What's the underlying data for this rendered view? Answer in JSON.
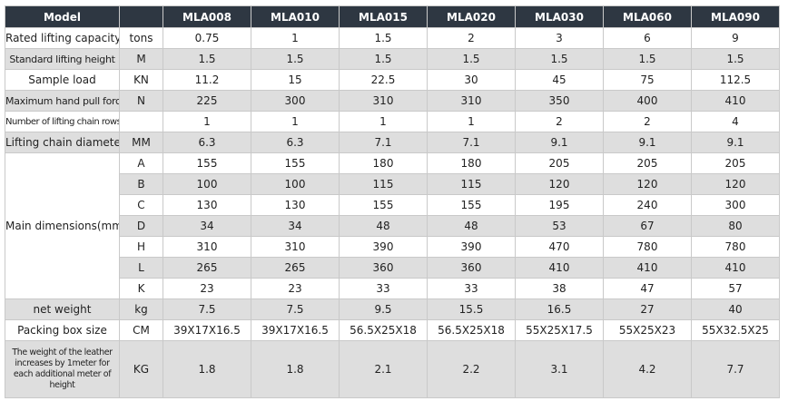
{
  "table": {
    "header": {
      "label": "Model",
      "models": [
        "MLA008",
        "MLA010",
        "MLA015",
        "MLA020",
        "MLA030",
        "MLA060",
        "MLA090"
      ]
    },
    "rows": [
      {
        "label": "Rated lifting capacity",
        "unit": "tons",
        "values": [
          "0.75",
          "1",
          "1.5",
          "2",
          "3",
          "6",
          "9"
        ]
      },
      {
        "label": "Standard lifting height",
        "unit": "M",
        "values": [
          "1.5",
          "1.5",
          "1.5",
          "1.5",
          "1.5",
          "1.5",
          "1.5"
        ]
      },
      {
        "label": "Sample load",
        "unit": "KN",
        "values": [
          "11.2",
          "15",
          "22.5",
          "30",
          "45",
          "75",
          "112.5"
        ]
      },
      {
        "label": "Maximum hand pull force",
        "unit": "N",
        "values": [
          "225",
          "300",
          "310",
          "310",
          "350",
          "400",
          "410"
        ]
      },
      {
        "label": "Number of lifting chain rows",
        "values": [
          "1",
          "1",
          "1",
          "1",
          "2",
          "2",
          "4"
        ]
      },
      {
        "label": "Lifting chain diameter",
        "unit": "MM",
        "values": [
          "6.3",
          "6.3",
          "7.1",
          "7.1",
          "9.1",
          "9.1",
          "9.1"
        ]
      }
    ],
    "dimensions": {
      "label": "Main dimensions(mm)",
      "rows": [
        {
          "unit": "A",
          "values": [
            "155",
            "155",
            "180",
            "180",
            "205",
            "205",
            "205"
          ]
        },
        {
          "unit": "B",
          "values": [
            "100",
            "100",
            "115",
            "115",
            "120",
            "120",
            "120"
          ]
        },
        {
          "unit": "C",
          "values": [
            "130",
            "130",
            "155",
            "155",
            "195",
            "240",
            "300"
          ]
        },
        {
          "unit": "D",
          "values": [
            "34",
            "34",
            "48",
            "48",
            "53",
            "67",
            "80"
          ]
        },
        {
          "unit": "H",
          "values": [
            "310",
            "310",
            "390",
            "390",
            "470",
            "780",
            "780"
          ]
        },
        {
          "unit": "L",
          "values": [
            "265",
            "265",
            "360",
            "360",
            "410",
            "410",
            "410"
          ]
        },
        {
          "unit": "K",
          "values": [
            "23",
            "23",
            "33",
            "33",
            "38",
            "47",
            "57"
          ]
        }
      ]
    },
    "rows_after": [
      {
        "label": "net weight",
        "unit": "kg",
        "values": [
          "7.5",
          "7.5",
          "9.5",
          "15.5",
          "16.5",
          "27",
          "40"
        ]
      },
      {
        "label": "Packing box size",
        "unit": "CM",
        "values": [
          "39X17X16.5",
          "39X17X16.5",
          "56.5X25X18",
          "56.5X25X18",
          "55X25X17.5",
          "55X25X23",
          "55X32.5X25"
        ]
      },
      {
        "label": "The weight of the leather increases by 1meter for each additional meter of height",
        "unit": "KG",
        "values": [
          "1.8",
          "1.8",
          "2.1",
          "2.2",
          "3.1",
          "4.2",
          "7.7"
        ]
      }
    ]
  }
}
